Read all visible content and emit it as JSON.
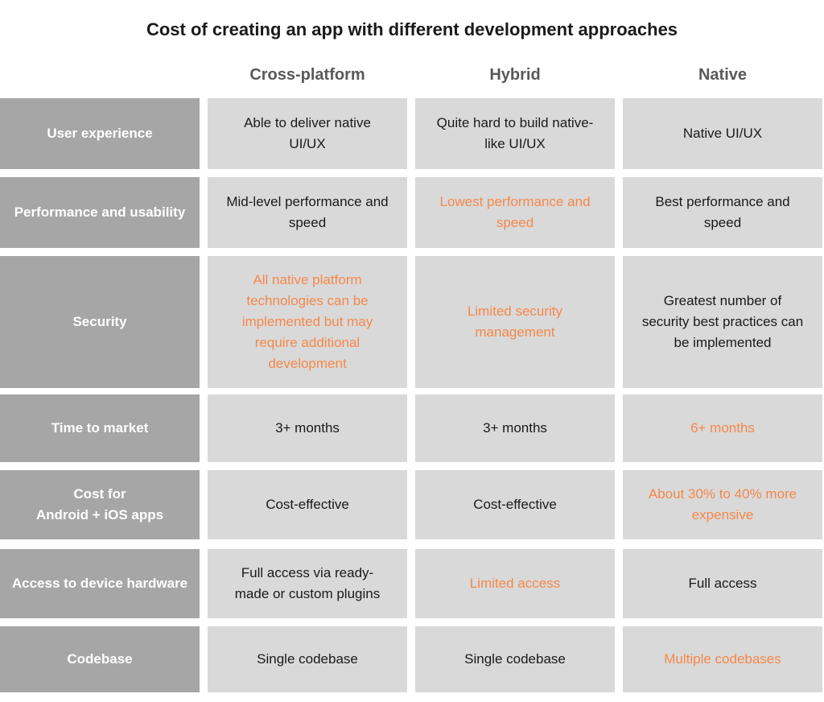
{
  "title": "Cost of creating an app with different development approaches",
  "columns": [
    "Cross-platform",
    "Hybrid",
    "Native"
  ],
  "accent_color": "#f5884a",
  "label_bg": "#a6a6a6",
  "cell_bg": "#d9d9d9",
  "rows": [
    {
      "label": "User experience",
      "cells": [
        {
          "text": "Able to deliver native UI/UX",
          "highlight": false
        },
        {
          "text": "Quite hard to build native-like UI/UX",
          "highlight": false
        },
        {
          "text": "Native UI/UX",
          "highlight": false
        }
      ]
    },
    {
      "label": "Performance and usability",
      "cells": [
        {
          "text": "Mid-level performance and speed",
          "highlight": false
        },
        {
          "text": "Lowest performance and speed",
          "highlight": true
        },
        {
          "text": "Best performance and speed",
          "highlight": false
        }
      ]
    },
    {
      "label": "Security",
      "cells": [
        {
          "text": "All native platform technologies can be implemented but may require additional development",
          "highlight": true
        },
        {
          "text": "Limited security management",
          "highlight": true
        },
        {
          "text": "Greatest number of security best practices can be implemented",
          "highlight": false
        }
      ]
    },
    {
      "label": "Time to market",
      "cells": [
        {
          "text": "3+ months",
          "highlight": false
        },
        {
          "text": "3+ months",
          "highlight": false
        },
        {
          "text": "6+ months",
          "highlight": true
        }
      ]
    },
    {
      "label": "Cost for\nAndroid + iOS apps",
      "cells": [
        {
          "text": "Cost-effective",
          "highlight": false
        },
        {
          "text": "Cost-effective",
          "highlight": false
        },
        {
          "text": "About 30% to 40% more expensive",
          "highlight": true
        }
      ]
    },
    {
      "label": "Access to device hardware",
      "cells": [
        {
          "text": "Full access via ready-made or custom plugins",
          "highlight": false
        },
        {
          "text": "Limited access",
          "highlight": true
        },
        {
          "text": "Full access",
          "highlight": false
        }
      ]
    },
    {
      "label": "Codebase",
      "cells": [
        {
          "text": "Single codebase",
          "highlight": false
        },
        {
          "text": "Single codebase",
          "highlight": false
        },
        {
          "text": "Multiple codebases",
          "highlight": true
        }
      ]
    }
  ]
}
